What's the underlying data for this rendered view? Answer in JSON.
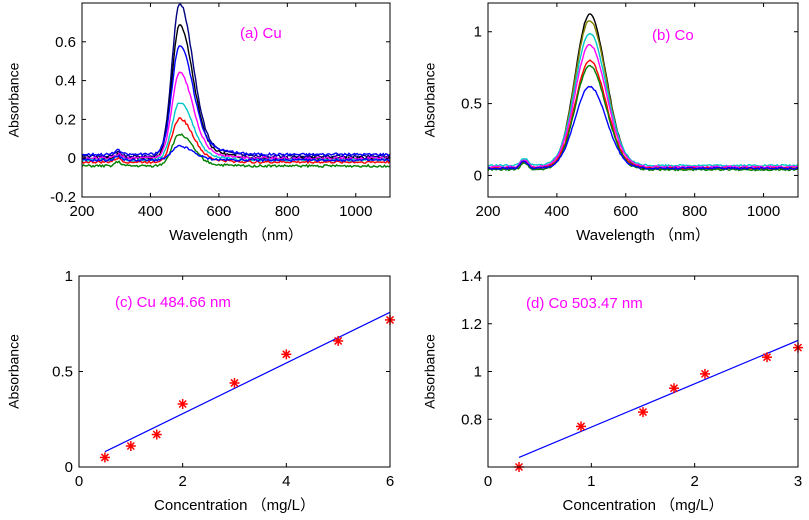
{
  "chart_data": [
    {
      "type": "line",
      "annotation": "(a)  Cu",
      "xlabel": "Wavelength （nm）",
      "ylabel": "Absorbance",
      "xlim": [
        200,
        1100
      ],
      "ylim": [
        -0.2,
        0.8
      ],
      "xticks": [
        "200",
        "400",
        "600",
        "800",
        "1000"
      ],
      "yticks": [
        "-0.2",
        "0",
        "0.2",
        "0.4",
        "0.6"
      ],
      "xtick_values": [
        200,
        400,
        600,
        800,
        1000
      ],
      "ytick_values": [
        -0.2,
        0,
        0.2,
        0.4,
        0.6
      ],
      "series": [
        {
          "name": "darkblue",
          "color": "#000080",
          "peak": 0.78,
          "base": 0.01
        },
        {
          "name": "black",
          "color": "#000000",
          "peak": 0.67,
          "base": 0.0
        },
        {
          "name": "blue",
          "color": "#0000ff",
          "peak": 0.57,
          "base": 0.02
        },
        {
          "name": "magenta",
          "color": "#ff00ff",
          "peak": 0.43,
          "base": 0.0
        },
        {
          "name": "cyan",
          "color": "#00c8c8",
          "peak": 0.28,
          "base": -0.01
        },
        {
          "name": "red",
          "color": "#ff0000",
          "peak": 0.2,
          "base": -0.02
        },
        {
          "name": "green",
          "color": "#008000",
          "peak": 0.12,
          "base": -0.04
        },
        {
          "name": "blue2",
          "color": "#0000ff",
          "peak": 0.06,
          "base": -0.01
        }
      ],
      "peak_wavelength": 485
    },
    {
      "type": "line",
      "annotation": "(b)  Co",
      "xlabel": "Wavelength （nm）",
      "ylabel": "Absorbance",
      "xlim": [
        200,
        1100
      ],
      "ylim": [
        -0.15,
        1.2
      ],
      "xticks": [
        "200",
        "400",
        "600",
        "800",
        "1000"
      ],
      "yticks": [
        "0",
        "0.5",
        "1"
      ],
      "xtick_values": [
        200,
        400,
        600,
        800,
        1000
      ],
      "ytick_values": [
        0,
        0.5,
        1
      ],
      "series": [
        {
          "name": "black",
          "color": "#000000",
          "peak": 1.12,
          "base": 0.05
        },
        {
          "name": "olive",
          "color": "#808000",
          "peak": 1.08,
          "base": 0.05
        },
        {
          "name": "cyan",
          "color": "#00c8c8",
          "peak": 0.99,
          "base": 0.07
        },
        {
          "name": "magenta",
          "color": "#ff00ff",
          "peak": 0.91,
          "base": 0.06
        },
        {
          "name": "red",
          "color": "#ff0000",
          "peak": 0.8,
          "base": 0.05
        },
        {
          "name": "green",
          "color": "#008000",
          "peak": 0.76,
          "base": 0.04
        },
        {
          "name": "blue",
          "color": "#0000ff",
          "peak": 0.62,
          "base": 0.05
        }
      ],
      "peak_wavelength": 495
    },
    {
      "type": "scatter",
      "annotation": "(c)  Cu  484.66 nm",
      "xlabel": "Concentration （mg/L）",
      "ylabel": "Absorbance",
      "xlim": [
        0,
        6
      ],
      "ylim": [
        0,
        1
      ],
      "xticks": [
        "0",
        "2",
        "4",
        "6"
      ],
      "yticks": [
        "0",
        "0.5",
        "1"
      ],
      "xtick_values": [
        0,
        2,
        4,
        6
      ],
      "ytick_values": [
        0,
        0.5,
        1
      ],
      "x": [
        0.5,
        1,
        1.5,
        2,
        3,
        4,
        5,
        6
      ],
      "y": [
        0.05,
        0.11,
        0.17,
        0.33,
        0.44,
        0.59,
        0.66,
        0.77
      ],
      "fit": {
        "x": [
          0.5,
          6
        ],
        "y": [
          0.08,
          0.81
        ]
      }
    },
    {
      "type": "scatter",
      "annotation": "(d)  Co  503.47 nm",
      "xlabel": "Concentration （mg/L）",
      "ylabel": "Absorbance",
      "xlim": [
        0,
        3
      ],
      "ylim": [
        0.6,
        1.4
      ],
      "xticks": [
        "0",
        "1",
        "2",
        "3"
      ],
      "yticks": [
        "0.8",
        "1",
        "1.2",
        "1.4"
      ],
      "xtick_values": [
        0,
        1,
        2,
        3
      ],
      "ytick_values": [
        0.8,
        1.0,
        1.2,
        1.4
      ],
      "x": [
        0.3,
        0.9,
        1.5,
        1.8,
        2.1,
        2.7,
        3.0
      ],
      "y": [
        0.6,
        0.77,
        0.83,
        0.93,
        0.99,
        1.06,
        1.1
      ],
      "fit": {
        "x": [
          0.3,
          3.0
        ],
        "y": [
          0.64,
          1.13
        ]
      }
    }
  ],
  "colors": {
    "annotation": "#ff00ff",
    "fit_line": "#0000ff",
    "marker": "#ff0000",
    "axis": "#000000"
  }
}
